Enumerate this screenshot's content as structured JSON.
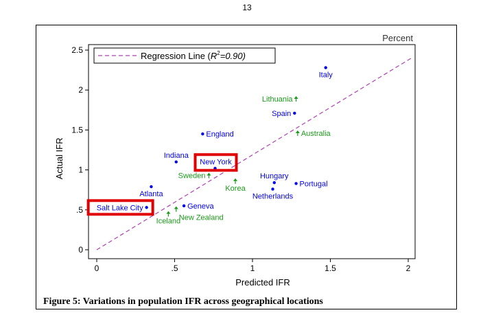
{
  "page": {
    "number": "13"
  },
  "caption": "Figure 5: Variations in population IFR across geographical locations",
  "chart_data": {
    "type": "scatter",
    "title": "",
    "xlabel": "Predicted IFR",
    "ylabel": "Actual IFR",
    "corner_label": "Percent",
    "xlim": [
      0,
      2
    ],
    "ylim": [
      0,
      2.5
    ],
    "x_ticks": [
      0,
      0.5,
      1,
      1.5,
      2
    ],
    "x_tick_labels": [
      "0",
      ".5",
      "1",
      "1.5",
      "2"
    ],
    "y_ticks": [
      0,
      0.5,
      1,
      1.5,
      2,
      2.5
    ],
    "y_tick_labels": [
      "0",
      ".5",
      "1",
      "1.5",
      "2",
      "2.5"
    ],
    "grid": false,
    "legend": {
      "position": "top-left",
      "label_prefix": "Regression Line (",
      "label_r": "R",
      "label_sup": "2",
      "label_suffix": "=0.90)"
    },
    "regression_line": {
      "x": [
        0,
        2.02
      ],
      "y": [
        0,
        2.4
      ],
      "color": "#b03fb0"
    },
    "colors": {
      "circle": "#0000ee",
      "arrow": "#1a9a1a",
      "highlight": "#e00000"
    },
    "points": [
      {
        "name": "Italy",
        "x": 1.47,
        "y": 2.28,
        "marker": "circle",
        "label_pos": "below"
      },
      {
        "name": "Lithuania",
        "x": 1.28,
        "y": 1.89,
        "marker": "arrow",
        "label_pos": "left"
      },
      {
        "name": "Spain",
        "x": 1.27,
        "y": 1.71,
        "marker": "circle",
        "label_pos": "left"
      },
      {
        "name": "Australia",
        "x": 1.29,
        "y": 1.46,
        "marker": "arrow",
        "label_pos": "right"
      },
      {
        "name": "England",
        "x": 0.68,
        "y": 1.45,
        "marker": "circle",
        "label_pos": "right"
      },
      {
        "name": "Indiana",
        "x": 0.51,
        "y": 1.1,
        "marker": "circle",
        "label_pos": "above"
      },
      {
        "name": "New York",
        "x": 0.76,
        "y": 1.02,
        "marker": "circle",
        "label_pos": "above-left",
        "highlighted": true
      },
      {
        "name": "Sweden",
        "x": 0.72,
        "y": 0.93,
        "marker": "arrow",
        "label_pos": "left"
      },
      {
        "name": "Korea",
        "x": 0.89,
        "y": 0.86,
        "marker": "arrow",
        "label_pos": "below"
      },
      {
        "name": "Hungary",
        "x": 1.14,
        "y": 0.84,
        "marker": "circle",
        "label_pos": "above"
      },
      {
        "name": "Portugal",
        "x": 1.28,
        "y": 0.83,
        "marker": "circle",
        "label_pos": "right"
      },
      {
        "name": "Netherlands",
        "x": 1.13,
        "y": 0.76,
        "marker": "circle",
        "label_pos": "below"
      },
      {
        "name": "Atlanta",
        "x": 0.35,
        "y": 0.79,
        "marker": "circle",
        "label_pos": "below"
      },
      {
        "name": "Salt Lake City",
        "x": 0.32,
        "y": 0.53,
        "marker": "circle",
        "label_pos": "left",
        "highlighted": true
      },
      {
        "name": "Geneva",
        "x": 0.56,
        "y": 0.55,
        "marker": "circle",
        "label_pos": "right"
      },
      {
        "name": "New Zealand",
        "x": 0.51,
        "y": 0.51,
        "marker": "arrow",
        "label_pos": "below-right"
      },
      {
        "name": "Iceland",
        "x": 0.46,
        "y": 0.45,
        "marker": "arrow",
        "label_pos": "below"
      }
    ]
  }
}
